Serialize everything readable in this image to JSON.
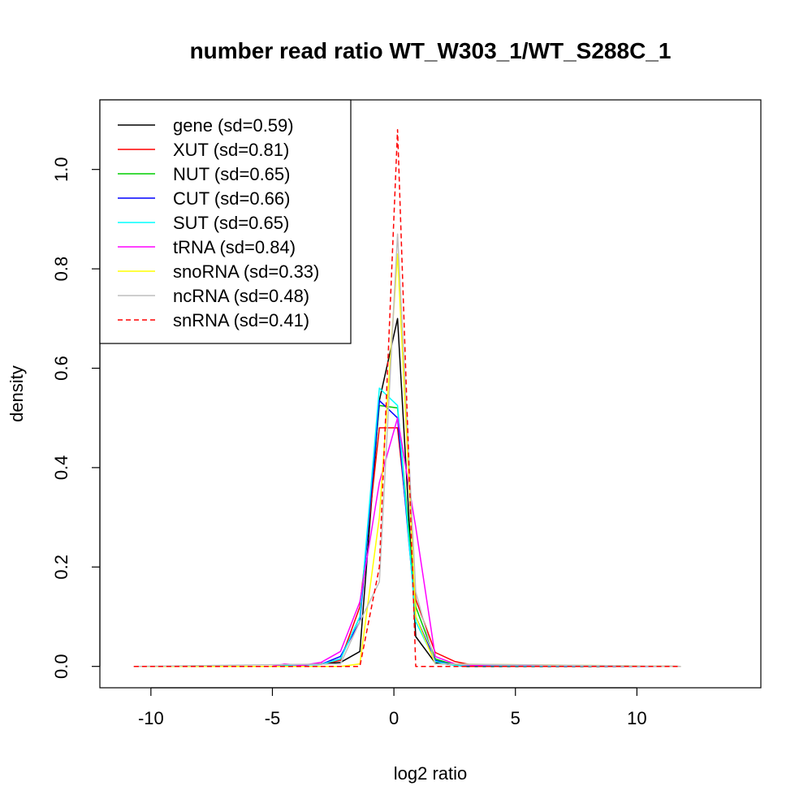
{
  "chart_data": {
    "type": "line",
    "title": "number read ratio WT_W303_1/WT_S288C_1",
    "xlabel": "log2 ratio",
    "ylabel": "density",
    "xlim": [
      -12.1,
      15.1
    ],
    "ylim": [
      -0.043,
      1.14
    ],
    "x_ticks": [
      -10,
      -5,
      0,
      5,
      10
    ],
    "x_tick_labels": [
      "-10",
      "-5",
      "0",
      "5",
      "10"
    ],
    "y_ticks": [
      0.0,
      0.2,
      0.4,
      0.6,
      0.8,
      1.0
    ],
    "y_tick_labels": [
      "0.0",
      "0.2",
      "0.4",
      "0.6",
      "0.8",
      "1.0"
    ],
    "grid": false,
    "legend_position": "top-left",
    "series": [
      {
        "name": "gene (sd=0.59)",
        "color": "#000000",
        "dash": "solid",
        "points": [
          [
            -10.7,
            0
          ],
          [
            -5,
            0
          ],
          [
            -3,
            0.005
          ],
          [
            -2.2,
            0.008
          ],
          [
            -1.4,
            0.03
          ],
          [
            -0.6,
            0.535
          ],
          [
            0.15,
            0.7
          ],
          [
            0.9,
            0.06
          ],
          [
            1.7,
            0.007
          ],
          [
            3,
            0
          ],
          [
            11.8,
            0
          ]
        ]
      },
      {
        "name": "XUT (sd=0.81)",
        "color": "#ff0000",
        "dash": "solid",
        "points": [
          [
            -10.7,
            0
          ],
          [
            -5,
            0
          ],
          [
            -3.8,
            0.002
          ],
          [
            -3,
            0.005
          ],
          [
            -2.2,
            0.012
          ],
          [
            -1.4,
            0.12
          ],
          [
            -0.6,
            0.48
          ],
          [
            0.15,
            0.48
          ],
          [
            0.9,
            0.135
          ],
          [
            1.7,
            0.028
          ],
          [
            2.5,
            0.01
          ],
          [
            3.3,
            0.002
          ],
          [
            11.8,
            0
          ]
        ]
      },
      {
        "name": "NUT (sd=0.65)",
        "color": "#00cd00",
        "dash": "solid",
        "points": [
          [
            -10.7,
            0
          ],
          [
            -5,
            0
          ],
          [
            -3,
            0.004
          ],
          [
            -2.2,
            0.015
          ],
          [
            -1.4,
            0.1
          ],
          [
            -0.6,
            0.525
          ],
          [
            0.15,
            0.52
          ],
          [
            0.9,
            0.12
          ],
          [
            1.7,
            0.015
          ],
          [
            2.5,
            0.003
          ],
          [
            11.8,
            0
          ]
        ]
      },
      {
        "name": "CUT (sd=0.66)",
        "color": "#0000ff",
        "dash": "solid",
        "points": [
          [
            -10.7,
            0
          ],
          [
            -5,
            0
          ],
          [
            -3,
            0.004
          ],
          [
            -2.2,
            0.02
          ],
          [
            -1.4,
            0.09
          ],
          [
            -0.6,
            0.535
          ],
          [
            0.15,
            0.5
          ],
          [
            0.9,
            0.1
          ],
          [
            1.7,
            0.012
          ],
          [
            2.5,
            0.002
          ],
          [
            11.8,
            0
          ]
        ]
      },
      {
        "name": "SUT (sd=0.65)",
        "color": "#00ffff",
        "dash": "solid",
        "points": [
          [
            -10.7,
            0
          ],
          [
            -5,
            0
          ],
          [
            -3,
            0.004
          ],
          [
            -2.2,
            0.015
          ],
          [
            -1.4,
            0.1
          ],
          [
            -0.6,
            0.56
          ],
          [
            0.15,
            0.525
          ],
          [
            0.9,
            0.09
          ],
          [
            1.7,
            0.01
          ],
          [
            2.5,
            0.002
          ],
          [
            11.8,
            0
          ]
        ]
      },
      {
        "name": "tRNA (sd=0.84)",
        "color": "#ff00ff",
        "dash": "solid",
        "points": [
          [
            -10.7,
            0
          ],
          [
            -5,
            0
          ],
          [
            -4.5,
            0.005
          ],
          [
            -3.8,
            0.002
          ],
          [
            -3,
            0.008
          ],
          [
            -2.2,
            0.03
          ],
          [
            -1.4,
            0.13
          ],
          [
            -0.6,
            0.37
          ],
          [
            0.15,
            0.5
          ],
          [
            0.9,
            0.28
          ],
          [
            1.7,
            0.02
          ],
          [
            2.5,
            0.005
          ],
          [
            3.3,
            0.002
          ],
          [
            4,
            0.003
          ],
          [
            11.8,
            0
          ]
        ]
      },
      {
        "name": "snoRNA (sd=0.33)",
        "color": "#ffff00",
        "dash": "solid",
        "points": [
          [
            -10.7,
            0
          ],
          [
            -2.2,
            0
          ],
          [
            -1.4,
            0.005
          ],
          [
            -0.6,
            0.3
          ],
          [
            0.15,
            0.83
          ],
          [
            0.9,
            0.1
          ],
          [
            1.7,
            0.005
          ],
          [
            11.8,
            0
          ]
        ]
      },
      {
        "name": "ncRNA (sd=0.48)",
        "color": "#bebebe",
        "dash": "solid",
        "points": [
          [
            -10.7,
            0
          ],
          [
            -2.2,
            0.005
          ],
          [
            -1.4,
            0.09
          ],
          [
            -0.6,
            0.17
          ],
          [
            0.15,
            0.87
          ],
          [
            0.9,
            0.15
          ],
          [
            1.7,
            0.005
          ],
          [
            11.8,
            0
          ]
        ]
      },
      {
        "name": "snRNA (sd=0.41)",
        "color": "#ff0000",
        "dash": "dashed",
        "points": [
          [
            -10.7,
            0
          ],
          [
            -1.4,
            0
          ],
          [
            -0.6,
            0.2
          ],
          [
            0.15,
            1.08
          ],
          [
            0.9,
            0
          ],
          [
            11.8,
            0
          ]
        ]
      }
    ]
  }
}
